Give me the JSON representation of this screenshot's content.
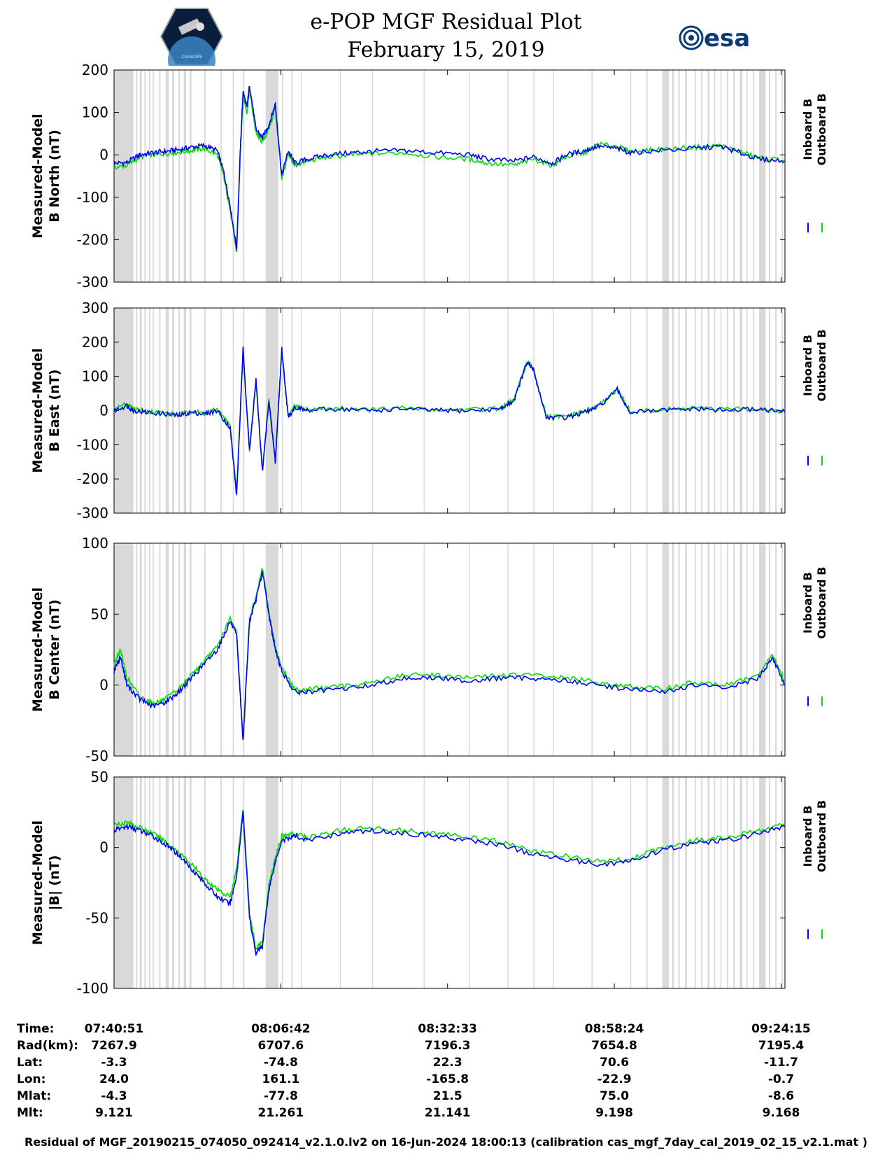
{
  "title_line1": "e-POP MGF Residual Plot",
  "title_line2": "February 15, 2019",
  "logos": {
    "left": "cassiope-mission-logo",
    "left_text": "CASSIOPE",
    "right": "esa-logo",
    "right_text": "esa"
  },
  "colors": {
    "inboard": "#0000ff",
    "outboard": "#00e000",
    "gap_shading": "#d9d9d9",
    "text": "#000000"
  },
  "legend": {
    "inboard": "Inboard B",
    "outboard": "Outboard B"
  },
  "chart_data": [
    {
      "type": "line",
      "ylabel_line1": "Measured-Model",
      "ylabel_line2": "B North (nT)",
      "ylim": [
        -300,
        200
      ],
      "yticks": [
        200,
        100,
        0,
        -100,
        -200,
        -300
      ],
      "ytick_labels": [
        "200",
        "100",
        "0",
        "-100",
        "-200",
        "-300"
      ],
      "x_minutes": [
        0,
        2,
        4,
        6,
        8,
        10,
        12,
        14,
        16,
        17,
        18,
        19,
        19.6,
        20,
        20.6,
        21,
        22,
        23,
        24,
        25,
        26,
        27,
        28,
        30,
        33,
        37,
        40,
        45,
        50,
        55,
        58,
        62,
        65,
        68,
        70,
        73,
        75,
        78,
        80,
        84,
        90,
        94,
        97,
        100,
        104
      ],
      "series": [
        {
          "name": "Inboard B",
          "values": [
            -20,
            -18,
            0,
            5,
            8,
            12,
            18,
            22,
            10,
            -40,
            -120,
            -220,
            20,
            150,
            110,
            165,
            60,
            40,
            70,
            120,
            -50,
            10,
            -20,
            -10,
            0,
            5,
            8,
            10,
            5,
            0,
            -10,
            -15,
            -5,
            -20,
            0,
            10,
            20,
            15,
            5,
            10,
            15,
            20,
            5,
            -10,
            -15
          ]
        },
        {
          "name": "Outboard B",
          "values": [
            -30,
            -25,
            -5,
            0,
            3,
            6,
            10,
            15,
            0,
            -50,
            -130,
            -230,
            10,
            140,
            100,
            155,
            50,
            30,
            60,
            110,
            -55,
            0,
            -25,
            -15,
            -5,
            0,
            3,
            5,
            -5,
            -10,
            -20,
            -25,
            -10,
            -25,
            -5,
            5,
            25,
            20,
            8,
            12,
            18,
            22,
            8,
            -8,
            -12
          ]
        }
      ]
    },
    {
      "type": "line",
      "ylabel_line1": "Measured-Model",
      "ylabel_line2": "B East (nT)",
      "ylim": [
        -300,
        300
      ],
      "yticks": [
        300,
        200,
        100,
        0,
        -100,
        -200,
        -300
      ],
      "ytick_labels": [
        "300",
        "200",
        "100",
        "0",
        "-100",
        "-200",
        "-300"
      ],
      "x_minutes": [
        0,
        2,
        3,
        5,
        8,
        10,
        12,
        14,
        16,
        18,
        19,
        20,
        21,
        22,
        23,
        24,
        25,
        26,
        27,
        28,
        30,
        35,
        40,
        45,
        50,
        55,
        60,
        62,
        64,
        65,
        67,
        70,
        73,
        75,
        78,
        80,
        85,
        90,
        95,
        100,
        104
      ],
      "series": [
        {
          "name": "Inboard B",
          "values": [
            0,
            15,
            0,
            -5,
            -10,
            -15,
            -5,
            -10,
            0,
            -50,
            -250,
            180,
            -120,
            90,
            -180,
            30,
            -150,
            180,
            -20,
            10,
            0,
            5,
            0,
            5,
            0,
            0,
            5,
            30,
            140,
            120,
            -20,
            -20,
            -5,
            10,
            60,
            -5,
            0,
            5,
            0,
            5,
            -5
          ]
        },
        {
          "name": "Outboard B",
          "values": [
            5,
            20,
            5,
            -2,
            -8,
            -12,
            -2,
            -8,
            3,
            -45,
            -240,
            170,
            -115,
            85,
            -175,
            28,
            -145,
            175,
            -18,
            12,
            2,
            7,
            2,
            7,
            2,
            2,
            7,
            32,
            142,
            122,
            -18,
            -18,
            -3,
            12,
            62,
            -3,
            2,
            7,
            2,
            7,
            -3
          ]
        }
      ]
    },
    {
      "type": "line",
      "ylabel_line1": "Measured-Model",
      "ylabel_line2": "B Center (nT)",
      "ylim": [
        -50,
        100
      ],
      "yticks": [
        100,
        50,
        0,
        -50
      ],
      "ytick_labels": [
        "100",
        "50",
        "0",
        "-50"
      ],
      "x_minutes": [
        0,
        1,
        2,
        4,
        6,
        8,
        10,
        12,
        14,
        16,
        18,
        19,
        20,
        21,
        22,
        23,
        24,
        25,
        26,
        28,
        30,
        35,
        40,
        45,
        50,
        55,
        60,
        65,
        70,
        75,
        80,
        85,
        90,
        95,
        100,
        102,
        104
      ],
      "series": [
        {
          "name": "Inboard B",
          "values": [
            10,
            20,
            0,
            -10,
            -15,
            -12,
            -5,
            5,
            15,
            25,
            45,
            35,
            -40,
            45,
            60,
            80,
            50,
            25,
            10,
            -5,
            -5,
            -3,
            0,
            5,
            5,
            3,
            5,
            5,
            3,
            0,
            -3,
            -5,
            0,
            -2,
            5,
            20,
            0
          ]
        },
        {
          "name": "Outboard B",
          "values": [
            15,
            25,
            5,
            -8,
            -13,
            -10,
            -3,
            7,
            17,
            27,
            47,
            37,
            -38,
            47,
            62,
            82,
            52,
            27,
            12,
            -3,
            -3,
            -1,
            2,
            7,
            7,
            5,
            7,
            7,
            5,
            2,
            -1,
            -3,
            2,
            0,
            7,
            22,
            2
          ]
        }
      ]
    },
    {
      "type": "line",
      "ylabel_line1": "Measured-Model",
      "ylabel_line2": "|B| (nT)",
      "ylim": [
        -100,
        50
      ],
      "yticks": [
        50,
        0,
        -50,
        -100
      ],
      "ytick_labels": [
        "50",
        "0",
        "-50",
        "-100"
      ],
      "x_minutes": [
        0,
        2,
        4,
        6,
        8,
        10,
        12,
        14,
        16,
        18,
        19,
        20,
        21,
        22,
        23,
        24,
        25,
        26,
        28,
        30,
        35,
        40,
        45,
        50,
        55,
        60,
        65,
        70,
        75,
        80,
        85,
        90,
        95,
        100,
        104
      ],
      "series": [
        {
          "name": "Inboard B",
          "values": [
            12,
            15,
            12,
            8,
            2,
            -5,
            -15,
            -25,
            -35,
            -40,
            -20,
            25,
            -50,
            -75,
            -70,
            -30,
            -10,
            5,
            8,
            5,
            10,
            12,
            10,
            8,
            5,
            2,
            -5,
            -8,
            -12,
            -10,
            -2,
            3,
            5,
            10,
            15
          ]
        },
        {
          "name": "Outboard B",
          "values": [
            16,
            18,
            14,
            10,
            4,
            -3,
            -12,
            -22,
            -30,
            -35,
            -15,
            28,
            -47,
            -72,
            -67,
            -27,
            -7,
            8,
            10,
            7,
            12,
            14,
            12,
            10,
            7,
            4,
            -3,
            -6,
            -10,
            -8,
            0,
            5,
            7,
            12,
            17
          ]
        }
      ]
    }
  ],
  "x_axis": {
    "range_minutes": [
      0,
      104
    ],
    "tick_minutes": [
      0,
      25.85,
      51.7,
      77.55,
      103.4
    ]
  },
  "gaps_minutes": [
    [
      0,
      3
    ],
    [
      3.4,
      3.6
    ],
    [
      4,
      4.3
    ],
    [
      4.7,
      4.9
    ],
    [
      5.4,
      5.6
    ],
    [
      6,
      6.1
    ],
    [
      7,
      7.2
    ],
    [
      8,
      8.5
    ],
    [
      9,
      9.3
    ],
    [
      10,
      10.2
    ],
    [
      10.8,
      11.2
    ],
    [
      11.7,
      12
    ],
    [
      14,
      14.2
    ],
    [
      16.5,
      16.7
    ],
    [
      18.4,
      18.6
    ],
    [
      20,
      20.2
    ],
    [
      23.5,
      25.5
    ],
    [
      26,
      26.2
    ],
    [
      27.5,
      27.7
    ],
    [
      29,
      29.1
    ],
    [
      35,
      35.1
    ],
    [
      40,
      40.1
    ],
    [
      48,
      48.1
    ],
    [
      55,
      55.1
    ],
    [
      61,
      61.1
    ],
    [
      65,
      65.1
    ],
    [
      68,
      68.1
    ],
    [
      74,
      74.2
    ],
    [
      80,
      80.1
    ],
    [
      82.5,
      82.7
    ],
    [
      85,
      86
    ],
    [
      86.5,
      86.8
    ],
    [
      87.5,
      87.7
    ],
    [
      88.5,
      88.8
    ],
    [
      90,
      90.2
    ],
    [
      91,
      91.2
    ],
    [
      92,
      92.3
    ],
    [
      93,
      93.2
    ],
    [
      94,
      94.1
    ],
    [
      95,
      95.2
    ],
    [
      96,
      96.2
    ],
    [
      97,
      97.4
    ],
    [
      98,
      98.2
    ],
    [
      99,
      99.2
    ],
    [
      100,
      101
    ],
    [
      101.5,
      101.7
    ],
    [
      102.5,
      102.7
    ],
    [
      103.5,
      103.7
    ]
  ],
  "info_table": {
    "row_labels": [
      "Time:",
      "Rad(km):",
      "Lat:",
      "Lon:",
      "Mlat:",
      "Mlt:"
    ],
    "columns": [
      [
        "07:40:51",
        "7267.9",
        "-3.3",
        "24.0",
        "-4.3",
        "9.121"
      ],
      [
        "08:06:42",
        "6707.6",
        "-74.8",
        "161.1",
        "-77.8",
        "21.261"
      ],
      [
        "08:32:33",
        "7196.3",
        "22.3",
        "-165.8",
        "21.5",
        "21.141"
      ],
      [
        "08:58:24",
        "7654.8",
        "70.6",
        "-22.9",
        "75.0",
        "9.198"
      ],
      [
        "09:24:15",
        "7195.4",
        "-11.7",
        "-0.7",
        "-8.6",
        "9.168"
      ]
    ]
  },
  "footer": "Residual of MGF_20190215_074050_092414_v2.1.0.lv2 on 16-Jun-2024 18:00:13 (calibration cas_mgf_7day_cal_2019_02_15_v2.1.mat )"
}
